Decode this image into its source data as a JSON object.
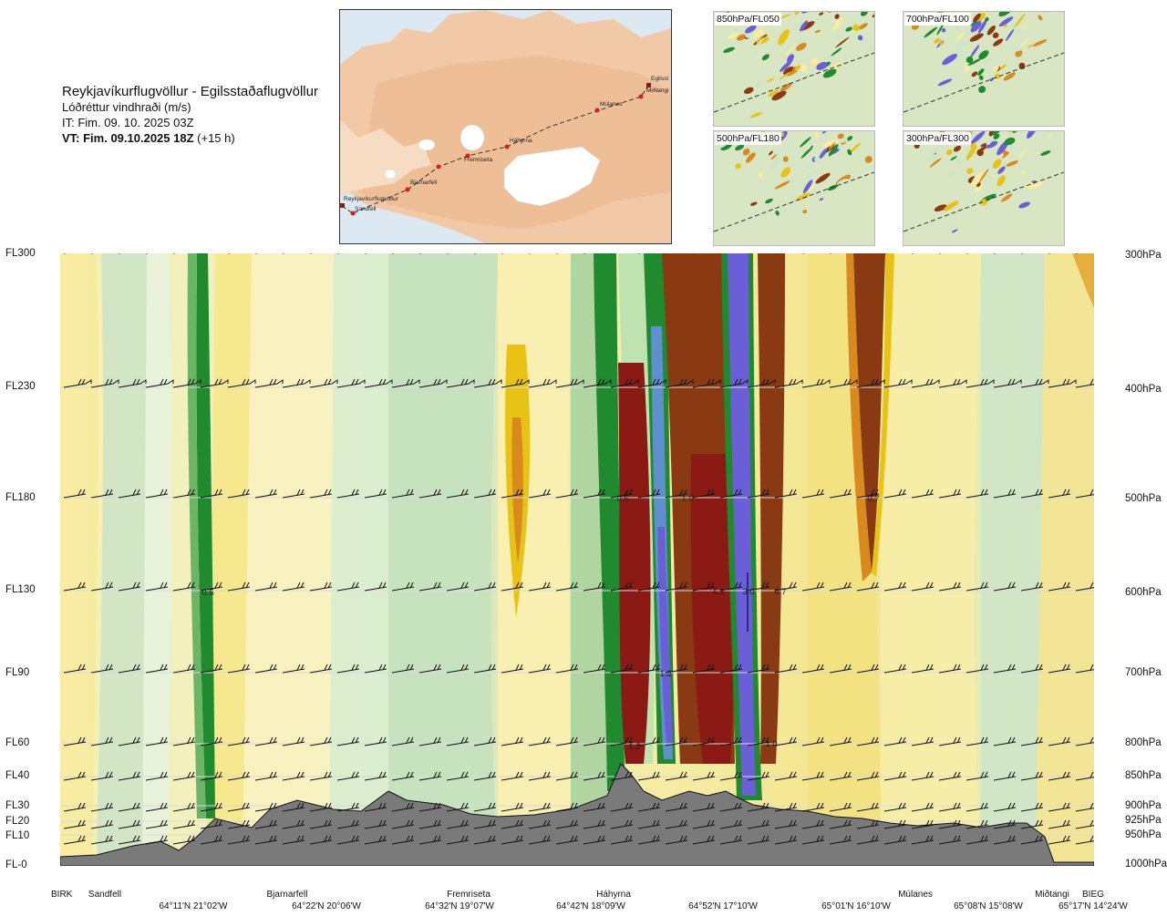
{
  "header": {
    "route": "Reykjavíkurflugvöllur - Egilsstaðaflugvöllur",
    "parameter": "Lóðréttur vindhraði (m/s)",
    "it": "IT: Fim. 09. 10. 2025 03Z",
    "vt_bold": "VT: Fim. 09.10.2025 18Z",
    "vt_rest": " (+15 h)"
  },
  "map": {
    "places": [
      "Reykjavíkurflugvöllur",
      "Sandfell",
      "Bjarnarfell",
      "Fremriseta",
      "Háhyrna",
      "Múlanes",
      "Egilsst",
      "Miðtangi"
    ]
  },
  "thumbs": [
    {
      "label": "850hPa/FL050"
    },
    {
      "label": "700hPa/FL100"
    },
    {
      "label": "500hPa/FL180"
    },
    {
      "label": "300hPa/FL300"
    }
  ],
  "levels_left": [
    "FL300",
    "FL230",
    "FL180",
    "FL130",
    "FL90",
    "FL60",
    "FL40",
    "FL30",
    "FL20",
    "FL10",
    "FL-0"
  ],
  "levels_right": [
    "300hPa",
    "400hPa",
    "500hPa",
    "600hPa",
    "700hPa",
    "800hPa",
    "850hPa",
    "900hPa",
    "925hPa",
    "950hPa",
    "1000hPa"
  ],
  "contour_labels": [
    "0.5",
    "0.5",
    "1.0",
    "4.5",
    "3.0",
    "0.7",
    "0.7",
    "1.2",
    "1.2",
    "1.0"
  ],
  "bottom": {
    "endpoints": [
      "BIRK",
      "BIEG"
    ],
    "places": [
      "Sandfell",
      "Bjarnarfell",
      "Fremriseta",
      "Háhyrna",
      "Múlanes",
      "Miðtangi"
    ],
    "coords": [
      "64°11'N 21°02'W",
      "64°22'N 20°06'W",
      "64°32'N 19°07'W",
      "64°42'N 18°09'W",
      "64°52'N 17°10'W",
      "65°01'N 16°10'W",
      "65°08'N 15°08'W",
      "65°17'N 14°24'W"
    ]
  },
  "colors": {
    "strong_down": "#6b5fd8",
    "down": "#1f8a2e",
    "weak_down": "#c9e6c3",
    "weak_up": "#f7eca0",
    "up": "#e8c315",
    "strong_up": "#8a3a12",
    "very_strong_up": "#8b1a14",
    "terrain": "#7a7a7a"
  }
}
